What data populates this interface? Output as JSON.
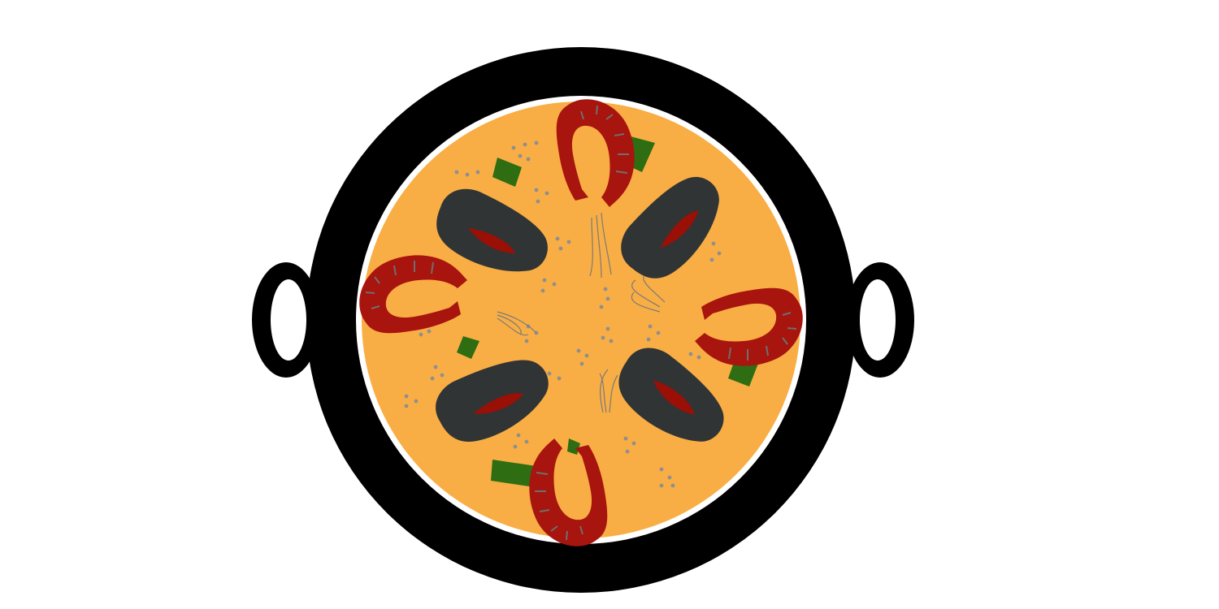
{
  "illustration": {
    "subject": "paella-pan-icon",
    "colors": {
      "background": "#ffffff",
      "pan": "#000000",
      "rim": "#ffffff",
      "rice": "#f8ae44",
      "mussel_shell": "#313435",
      "mussel_meat": "#9a0f06",
      "shrimp": "#a8140e",
      "shrimp_segment": "#6f6f6f",
      "pepper": "#2e6d12",
      "rice_grain": "#8f8f8f",
      "antenna": "#7a7a7a"
    },
    "ingredients": {
      "shrimp_count": 4,
      "mussel_count": 4,
      "pepper_count": 6
    }
  }
}
